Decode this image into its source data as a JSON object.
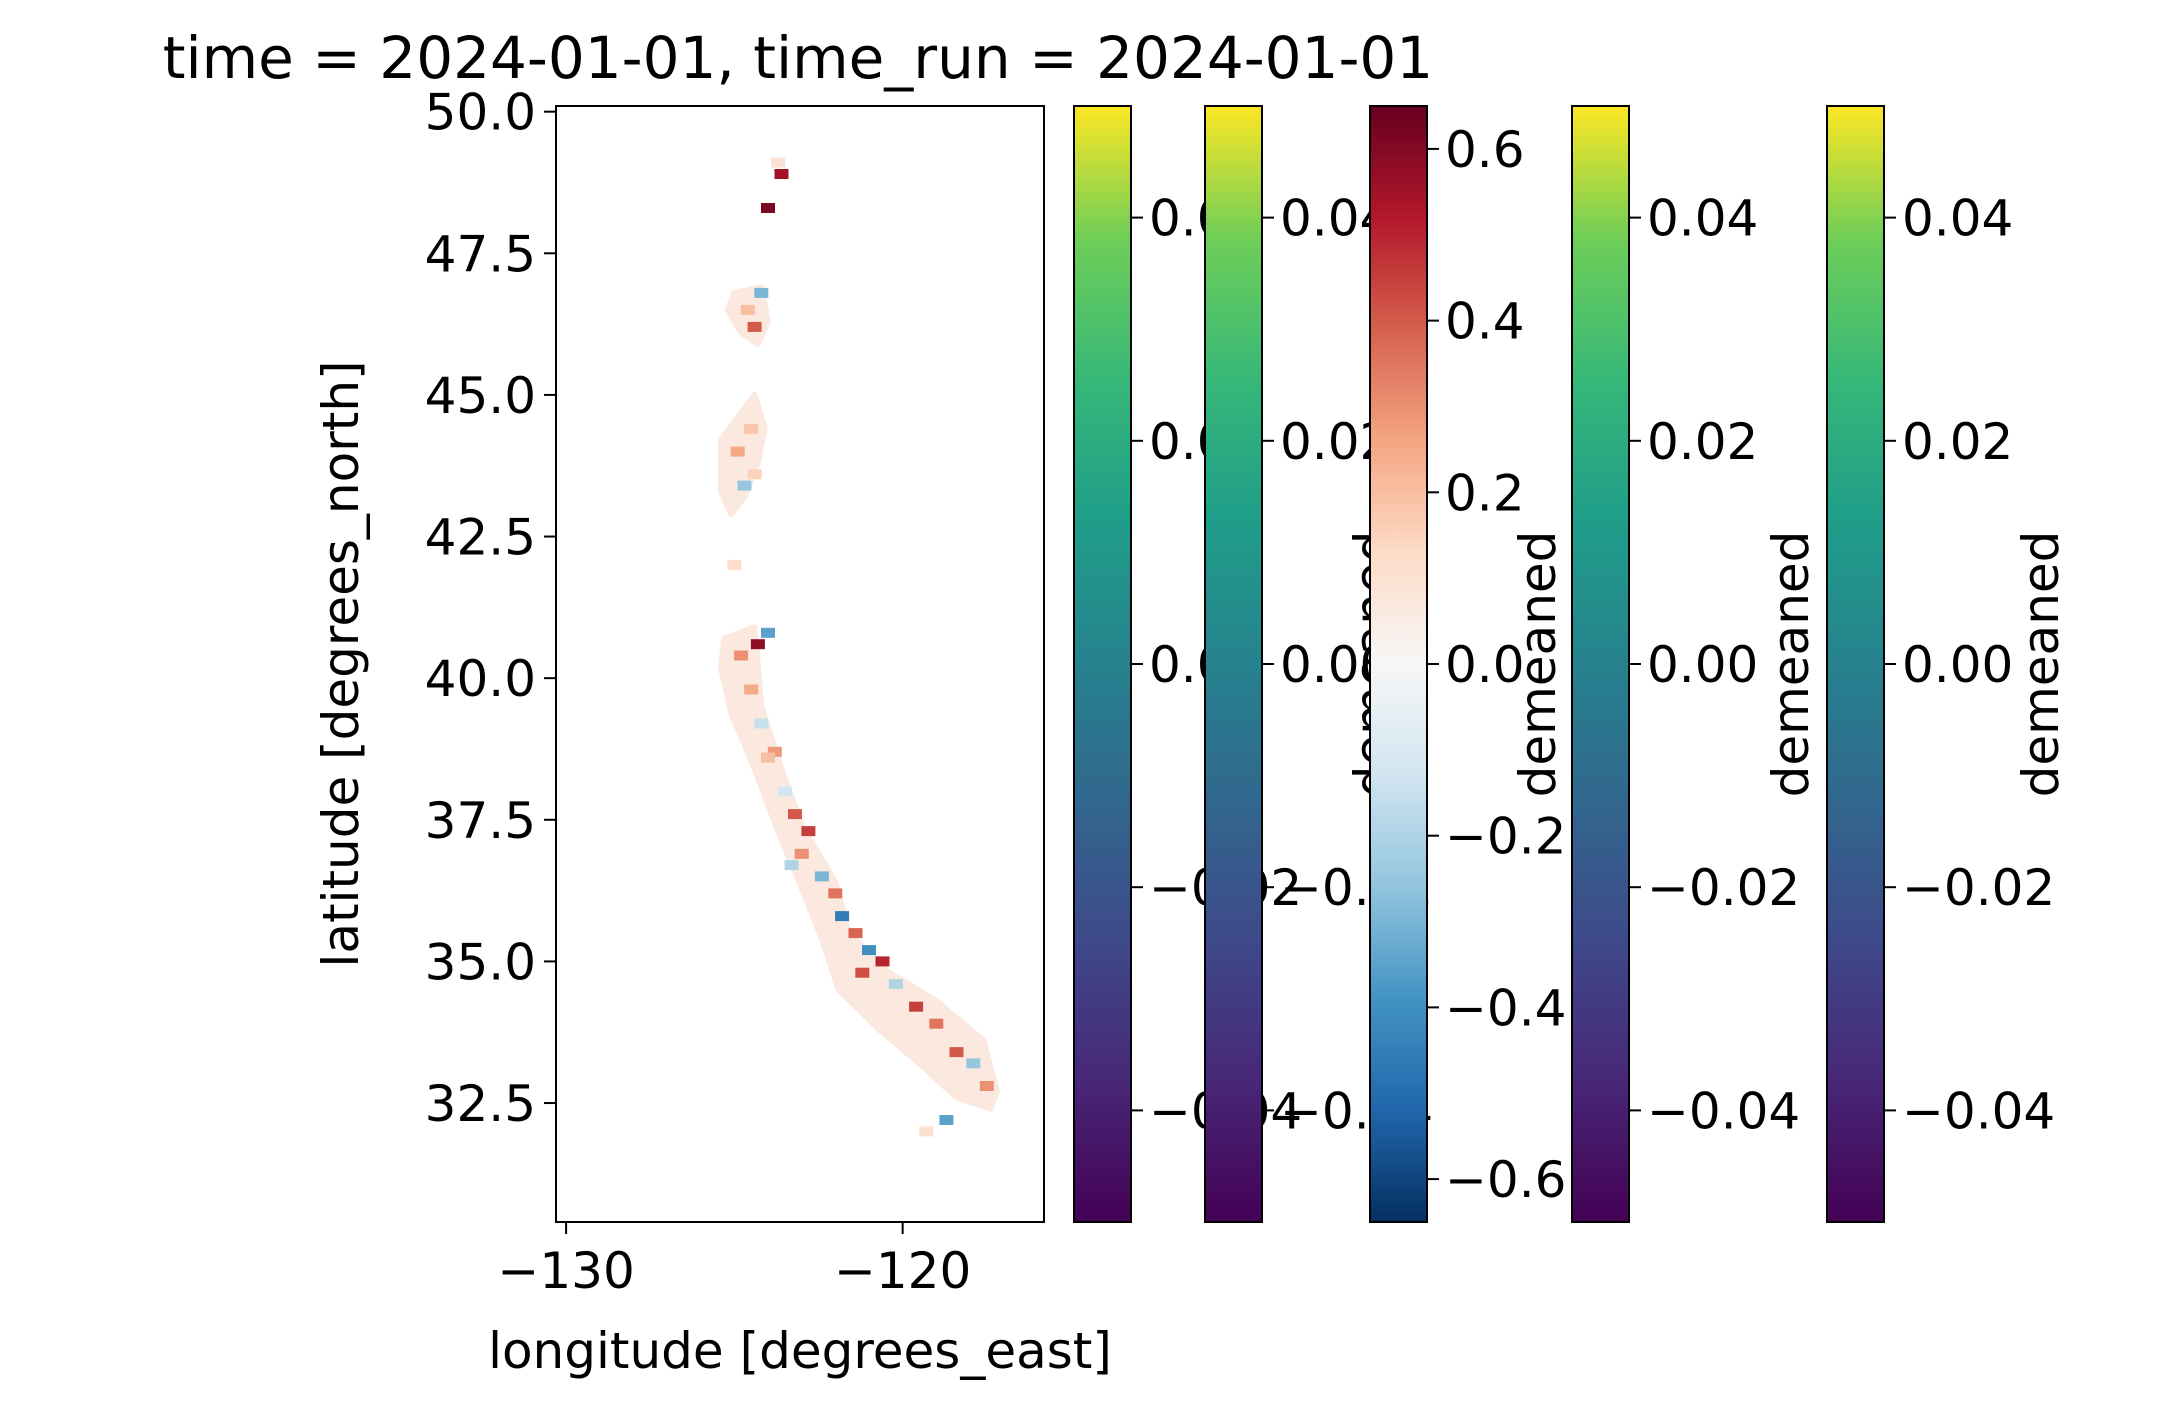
{
  "chart_data": [
    {
      "type": "heatmap",
      "title": "time = 2024-01-01, time_run = 2024-01-01",
      "xlabel": "longitude [degrees_east]",
      "ylabel": "latitude [degrees_north]",
      "xlim": [
        -130.3,
        -115.8
      ],
      "ylim": [
        30.4,
        50.1
      ],
      "xticks": [
        -130,
        -120
      ],
      "xtick_labels": [
        "−130",
        "−120"
      ],
      "yticks": [
        32.5,
        35.0,
        37.5,
        40.0,
        42.5,
        45.0,
        47.5,
        50.0
      ],
      "ytick_labels": [
        "32.5",
        "35.0",
        "37.5",
        "40.0",
        "42.5",
        "45.0",
        "47.5",
        "50.0"
      ],
      "colormap": "RdBu_r",
      "value_range": [
        -0.65,
        0.65
      ],
      "grid": false,
      "coast_path": [
        [
          -125.3,
          40.7
        ],
        [
          -124.4,
          40.9
        ],
        [
          -124.2,
          39.5
        ],
        [
          -123.6,
          38.4
        ],
        [
          -123.0,
          37.4
        ],
        [
          -122.0,
          36.4
        ],
        [
          -121.6,
          35.5
        ],
        [
          -120.4,
          34.8
        ],
        [
          -119.0,
          34.3
        ],
        [
          -117.6,
          33.6
        ],
        [
          -117.2,
          32.7
        ],
        [
          -117.4,
          32.4
        ],
        [
          -118.4,
          32.6
        ],
        [
          -119.5,
          33.2
        ],
        [
          -120.7,
          33.8
        ],
        [
          -121.9,
          34.5
        ],
        [
          -122.4,
          35.4
        ],
        [
          -123.0,
          36.3
        ],
        [
          -123.7,
          37.3
        ],
        [
          -124.4,
          38.4
        ],
        [
          -125.1,
          39.4
        ],
        [
          -125.4,
          40.2
        ]
      ],
      "oregon_path": [
        [
          -125.4,
          44.2
        ],
        [
          -124.9,
          44.6
        ],
        [
          -124.4,
          45.0
        ],
        [
          -124.1,
          44.4
        ],
        [
          -124.3,
          43.8
        ],
        [
          -124.7,
          43.2
        ],
        [
          -125.1,
          42.9
        ],
        [
          -125.4,
          43.3
        ]
      ],
      "washington_path": [
        [
          -125.0,
          46.8
        ],
        [
          -124.2,
          46.9
        ],
        [
          -124.0,
          46.3
        ],
        [
          -124.3,
          45.9
        ],
        [
          -124.8,
          46.1
        ],
        [
          -125.2,
          46.5
        ]
      ],
      "cells": [
        {
          "lon": -123.6,
          "lat": 48.9,
          "value": 0.55
        },
        {
          "lon": -124.0,
          "lat": 48.3,
          "value": 0.62
        },
        {
          "lon": -123.7,
          "lat": 49.1,
          "value": 0.1
        },
        {
          "lon": -124.4,
          "lat": 46.2,
          "value": 0.4
        },
        {
          "lon": -124.6,
          "lat": 46.5,
          "value": 0.2
        },
        {
          "lon": -124.2,
          "lat": 46.8,
          "value": -0.3
        },
        {
          "lon": -124.9,
          "lat": 44.0,
          "value": 0.25
        },
        {
          "lon": -124.5,
          "lat": 44.4,
          "value": 0.18
        },
        {
          "lon": -124.7,
          "lat": 43.4,
          "value": -0.25
        },
        {
          "lon": -124.4,
          "lat": 43.6,
          "value": 0.15
        },
        {
          "lon": -125.0,
          "lat": 42.0,
          "value": 0.12
        },
        {
          "lon": -124.3,
          "lat": 40.6,
          "value": 0.58
        },
        {
          "lon": -124.0,
          "lat": 40.8,
          "value": -0.35
        },
        {
          "lon": -124.8,
          "lat": 40.4,
          "value": 0.3
        },
        {
          "lon": -124.5,
          "lat": 39.8,
          "value": 0.25
        },
        {
          "lon": -124.2,
          "lat": 39.2,
          "value": -0.15
        },
        {
          "lon": -123.8,
          "lat": 38.7,
          "value": 0.28
        },
        {
          "lon": -123.5,
          "lat": 38.0,
          "value": -0.12
        },
        {
          "lon": -123.2,
          "lat": 37.6,
          "value": 0.4
        },
        {
          "lon": -122.8,
          "lat": 37.3,
          "value": 0.45
        },
        {
          "lon": -122.4,
          "lat": 36.5,
          "value": -0.3
        },
        {
          "lon": -122.0,
          "lat": 36.2,
          "value": 0.35
        },
        {
          "lon": -121.8,
          "lat": 35.8,
          "value": -0.45
        },
        {
          "lon": -121.4,
          "lat": 35.5,
          "value": 0.38
        },
        {
          "lon": -121.0,
          "lat": 35.2,
          "value": -0.4
        },
        {
          "lon": -120.6,
          "lat": 35.0,
          "value": 0.5
        },
        {
          "lon": -120.2,
          "lat": 34.6,
          "value": -0.2
        },
        {
          "lon": -119.6,
          "lat": 34.2,
          "value": 0.45
        },
        {
          "lon": -119.0,
          "lat": 33.9,
          "value": 0.35
        },
        {
          "lon": -118.4,
          "lat": 33.4,
          "value": 0.4
        },
        {
          "lon": -117.9,
          "lat": 33.2,
          "value": -0.25
        },
        {
          "lon": -117.5,
          "lat": 32.8,
          "value": 0.3
        },
        {
          "lon": -118.7,
          "lat": 32.2,
          "value": -0.35
        },
        {
          "lon": -119.3,
          "lat": 32.0,
          "value": 0.1
        },
        {
          "lon": -123.0,
          "lat": 36.9,
          "value": 0.3
        },
        {
          "lon": -121.2,
          "lat": 34.8,
          "value": 0.42
        },
        {
          "lon": -124.0,
          "lat": 38.6,
          "value": 0.2
        },
        {
          "lon": -123.3,
          "lat": 36.7,
          "value": -0.2
        }
      ]
    },
    {
      "type": "colorbar",
      "colormap": "viridis",
      "label": "",
      "value_range": [
        -0.05,
        0.05
      ],
      "ticks": [
        -0.04,
        -0.02,
        0.0,
        0.02,
        0.04
      ],
      "tick_labels": [
        "−0.04",
        "−0.02",
        "0.00",
        "0.02",
        "0.04"
      ]
    },
    {
      "type": "colorbar",
      "colormap": "viridis",
      "label": "demeaned",
      "value_range": [
        -0.05,
        0.05
      ],
      "ticks": [
        -0.04,
        -0.02,
        0.0,
        0.02,
        0.04
      ],
      "tick_labels": [
        "−0.04",
        "−0.02",
        "0.00",
        "0.02",
        "0.04"
      ]
    },
    {
      "type": "colorbar",
      "colormap": "RdBu_r",
      "label": "demeaned",
      "value_range": [
        -0.65,
        0.65
      ],
      "ticks": [
        -0.6,
        -0.4,
        -0.2,
        0.0,
        0.2,
        0.4,
        0.6
      ],
      "tick_labels": [
        "−0.6",
        "−0.4",
        "−0.2",
        "0.0",
        "0.2",
        "0.4",
        "0.6"
      ]
    },
    {
      "type": "colorbar",
      "colormap": "viridis",
      "label": "demeaned",
      "value_range": [
        -0.05,
        0.05
      ],
      "ticks": [
        -0.04,
        -0.02,
        0.0,
        0.02,
        0.04
      ],
      "tick_labels": [
        "−0.04",
        "−0.02",
        "0.00",
        "0.02",
        "0.04"
      ]
    },
    {
      "type": "colorbar",
      "colormap": "viridis",
      "label": "demeaned",
      "value_range": [
        -0.05,
        0.05
      ],
      "ticks": [
        -0.04,
        -0.02,
        0.0,
        0.02,
        0.04
      ],
      "tick_labels": [
        "−0.04",
        "−0.02",
        "0.00",
        "0.02",
        "0.04"
      ]
    }
  ]
}
